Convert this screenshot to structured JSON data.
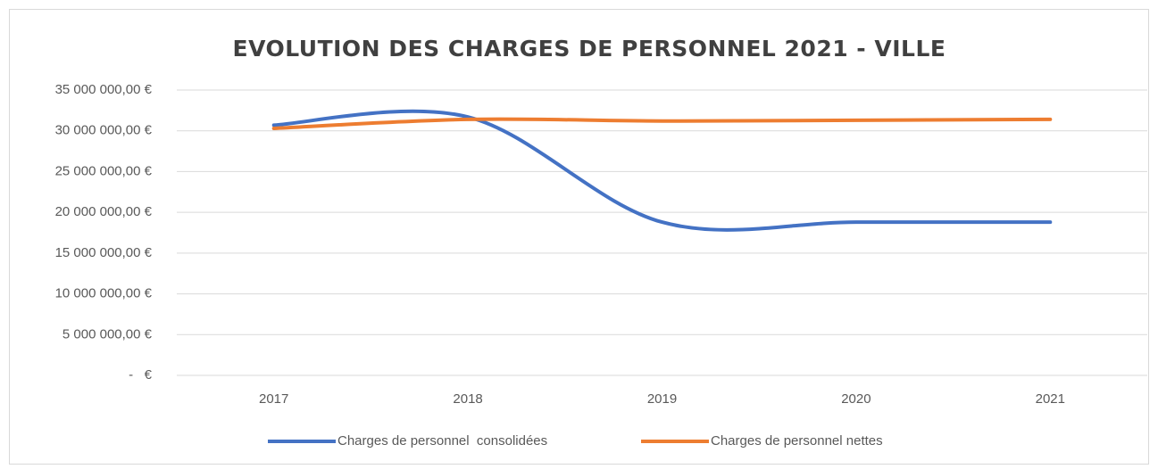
{
  "chart_data": {
    "type": "line",
    "title": "EVOLUTION DES CHARGES DE PERSONNEL 2021 - VILLE",
    "categories": [
      "2017",
      "2018",
      "2019",
      "2020",
      "2021"
    ],
    "series": [
      {
        "name": "Charges de personnel  consolidées",
        "color": "#4472c4",
        "values": [
          30700000,
          31700000,
          18800000,
          18800000,
          18800000
        ]
      },
      {
        "name": "Charges de personnel nettes",
        "color": "#ed7d31",
        "values": [
          30300000,
          31400000,
          31200000,
          31300000,
          31400000
        ]
      }
    ],
    "ylim": [
      0,
      35000000
    ],
    "yticks": [
      {
        "value": 0,
        "label": "-   €"
      },
      {
        "value": 5000000,
        "label": "5 000 000,00 €"
      },
      {
        "value": 10000000,
        "label": "10 000 000,00 €"
      },
      {
        "value": 15000000,
        "label": "15 000 000,00 €"
      },
      {
        "value": 20000000,
        "label": "20 000 000,00 €"
      },
      {
        "value": 25000000,
        "label": "25 000 000,00 €"
      },
      {
        "value": 30000000,
        "label": "30 000 000,00 €"
      },
      {
        "value": 35000000,
        "label": "35 000 000,00 €"
      }
    ],
    "grid": true,
    "smooth": true
  }
}
